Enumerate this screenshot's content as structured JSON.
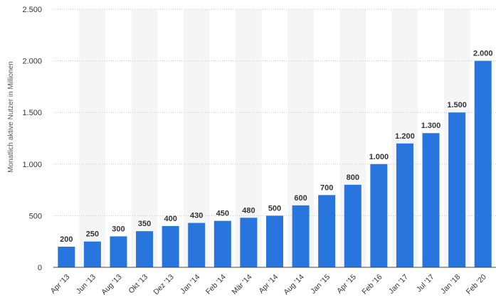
{
  "chart_data": {
    "type": "bar",
    "ylabel": "Monatlich aktive Nutzer in Millionen",
    "ylim": [
      0,
      2500
    ],
    "yticks": [
      0,
      500,
      1000,
      1500,
      2000,
      2500
    ],
    "ytick_labels": [
      "0",
      "500",
      "1.000",
      "1.500",
      "2.000",
      "2.500"
    ],
    "categories": [
      "Apr '13",
      "Jun '13",
      "Aug '13",
      "Okt '13",
      "Dez '13",
      "Jan '14",
      "Feb '14",
      "Mär '14",
      "Apr '14",
      "Aug '14",
      "Jan '15",
      "Apr '15",
      "Feb '16",
      "Jan '17",
      "Jul '17",
      "Jan '18",
      "Feb '20"
    ],
    "values": [
      200,
      250,
      300,
      350,
      400,
      430,
      450,
      480,
      500,
      600,
      700,
      800,
      1000,
      1200,
      1300,
      1500,
      2000
    ],
    "value_labels": [
      "200",
      "250",
      "300",
      "350",
      "400",
      "430",
      "450",
      "480",
      "500",
      "600",
      "700",
      "800",
      "1.000",
      "1.200",
      "1.300",
      "1.500",
      "2.000"
    ],
    "grid": true,
    "colors": {
      "bar": "#2876dd",
      "band": "#f5f5f5",
      "grid": "#c8c8c8",
      "text": "#333333"
    }
  }
}
